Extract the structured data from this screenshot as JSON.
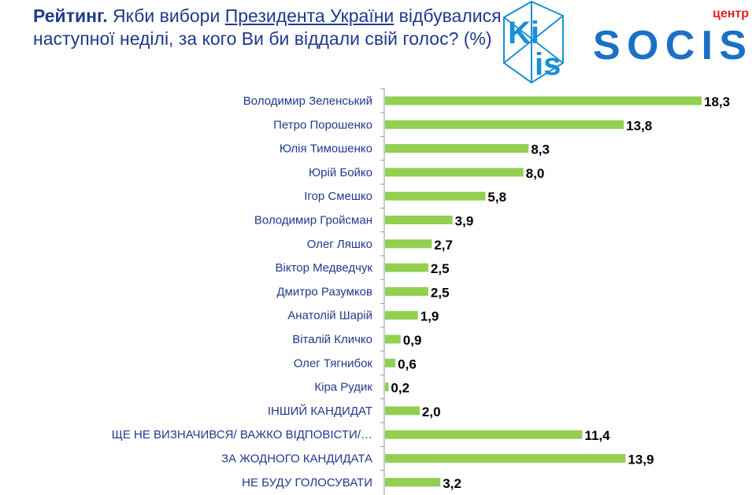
{
  "title": {
    "bold": "Рейтинг.",
    "part1": " Якби вибори ",
    "underlined": "Президента України",
    "part2": " відбувалися наступної неділі, за кого Ви би віддали свій голос? (%)"
  },
  "logos": {
    "kiis": "KIIS",
    "socis_small": "центр",
    "socis": "SOCIS"
  },
  "colors": {
    "bar": "#92d050",
    "text": "#1f3a8a",
    "logo": "#1b8fd6"
  },
  "chart_data": {
    "type": "bar",
    "orientation": "horizontal",
    "categories": [
      "Володимир Зеленський",
      "Петро Порошенко",
      "Юлія Тимошенко",
      "Юрій Бойко",
      "Ігор Смешко",
      "Володимир Гройсман",
      "Олег Ляшко",
      "Віктор Медведчук",
      "Дмитро Разумков",
      "Анатолій Шарій",
      "Віталій Кличко",
      "Олег Тягнибок",
      "Кіра Рудик",
      "ІНШИЙ КАНДИДАТ",
      "ЩЕ НЕ ВИЗНАЧИВСЯ/ ВАЖКО ВІДПОВІСТИ/…",
      "ЗА ЖОДНОГО КАНДИДАТА",
      "НЕ БУДУ ГОЛОСУВАТИ"
    ],
    "values": [
      18.3,
      13.8,
      8.3,
      8.0,
      5.8,
      3.9,
      2.7,
      2.5,
      2.5,
      1.9,
      0.9,
      0.6,
      0.2,
      2.0,
      11.4,
      13.9,
      3.2
    ],
    "value_labels": [
      "18,3",
      "13,8",
      "8,3",
      "8,0",
      "5,8",
      "3,9",
      "2,7",
      "2,5",
      "2,5",
      "1,9",
      "0,9",
      "0,6",
      "0,2",
      "2,0",
      "11,4",
      "13,9",
      "3,2"
    ],
    "xlim": [
      0,
      20
    ],
    "grid": false
  }
}
